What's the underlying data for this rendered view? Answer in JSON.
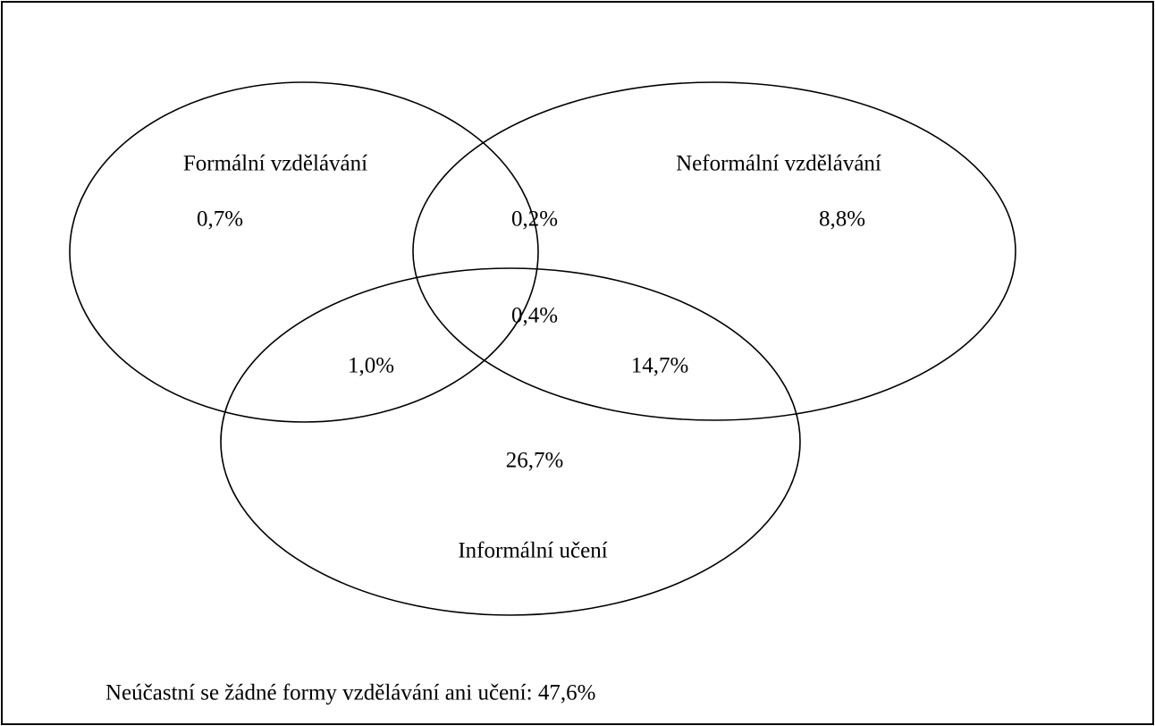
{
  "sets": [
    {
      "label": "Formální vzdělávání"
    },
    {
      "label": "Neformální vzdělávání"
    },
    {
      "label": "Informální učení"
    }
  ],
  "regions": [
    {
      "label": "0,7%"
    },
    {
      "label": "0,2%"
    },
    {
      "label": "8,8%"
    },
    {
      "label": "0,4%"
    },
    {
      "label": "1,0%"
    },
    {
      "label": "14,7%"
    },
    {
      "label": "26,7%"
    }
  ],
  "footer": "Neúčastní se žádné formy vzdělávání ani učení: 47,6%"
}
